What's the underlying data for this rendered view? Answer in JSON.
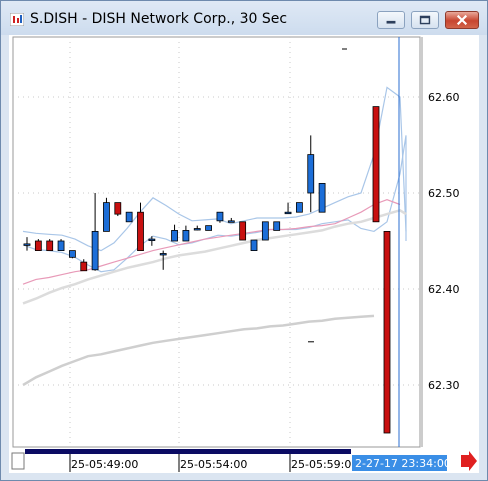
{
  "window": {
    "title": "S.DISH - DISH Network Corp., 30 Sec",
    "controls": [
      "minimize-icon",
      "restore-icon",
      "close-icon"
    ]
  },
  "chart_data": {
    "type": "candlestick",
    "title": "S.DISH - DISH Network Corp., 30 Sec",
    "y_axis": {
      "ticks": [
        "62.30",
        "62.40",
        "62.50",
        "62.60"
      ],
      "tick_values": [
        62.3,
        62.4,
        62.5,
        62.6
      ],
      "range": [
        62.24,
        62.665
      ],
      "side": "right",
      "grid": true
    },
    "x_axis": {
      "ticks": [
        "25-05:49:00",
        "25-05:54:00",
        "25-05:59:00"
      ],
      "cursor_label": "2-27-17 23:34:00",
      "grid": true
    },
    "candles": [
      {
        "o": 62.447,
        "h": 62.454,
        "l": 62.44,
        "c": 62.447
      },
      {
        "o": 62.45,
        "h": 62.452,
        "l": 62.44,
        "c": 62.44
      },
      {
        "o": 62.45,
        "h": 62.452,
        "l": 62.44,
        "c": 62.44
      },
      {
        "o": 62.44,
        "h": 62.452,
        "l": 62.44,
        "c": 62.45
      },
      {
        "o": 62.433,
        "h": 62.44,
        "l": 62.432,
        "c": 62.44
      },
      {
        "o": 62.428,
        "h": 62.431,
        "l": 62.419,
        "c": 62.419
      },
      {
        "o": 62.42,
        "h": 62.5,
        "l": 62.419,
        "c": 62.46
      },
      {
        "o": 62.46,
        "h": 62.495,
        "l": 62.46,
        "c": 62.49
      },
      {
        "o": 62.49,
        "h": 62.49,
        "l": 62.476,
        "c": 62.478
      },
      {
        "o": 62.47,
        "h": 62.48,
        "l": 62.47,
        "c": 62.48
      },
      {
        "o": 62.48,
        "h": 62.49,
        "l": 62.44,
        "c": 62.44
      },
      {
        "o": 62.452,
        "h": 62.455,
        "l": 62.445,
        "c": 62.452
      },
      {
        "o": 62.437,
        "h": 62.44,
        "l": 62.42,
        "c": 62.437
      },
      {
        "o": 62.45,
        "h": 62.467,
        "l": 62.45,
        "c": 62.461
      },
      {
        "o": 62.45,
        "h": 62.466,
        "l": 62.45,
        "c": 62.461
      },
      {
        "o": 62.463,
        "h": 62.466,
        "l": 62.461,
        "c": 62.463
      },
      {
        "o": 62.461,
        "h": 62.466,
        "l": 62.461,
        "c": 62.466
      },
      {
        "o": 62.471,
        "h": 62.48,
        "l": 62.469,
        "c": 62.48
      },
      {
        "o": 62.471,
        "h": 62.474,
        "l": 62.471,
        "c": 62.471
      },
      {
        "o": 62.47,
        "h": 62.47,
        "l": 62.451,
        "c": 62.451
      },
      {
        "o": 62.44,
        "h": 62.451,
        "l": 62.44,
        "c": 62.451
      },
      {
        "o": 62.451,
        "h": 62.47,
        "l": 62.451,
        "c": 62.47
      },
      {
        "o": 62.461,
        "h": 62.47,
        "l": 62.461,
        "c": 62.47
      },
      {
        "o": 62.48,
        "h": 62.49,
        "l": 62.479,
        "c": 62.48
      },
      {
        "o": 62.48,
        "h": 62.49,
        "l": 62.48,
        "c": 62.49
      },
      {
        "o": 62.5,
        "h": 62.56,
        "l": 62.48,
        "c": 62.54
      },
      {
        "o": 62.48,
        "h": 62.51,
        "l": 62.48,
        "c": 62.51
      },
      {
        "o": 62.59,
        "h": 62.59,
        "l": 62.47,
        "c": 62.47
      },
      {
        "o": 62.46,
        "h": 62.46,
        "l": 62.25,
        "c": 62.25
      }
    ],
    "moving_averages": [
      {
        "color": "#a9c6e8",
        "values": [
          62.46,
          62.458,
          62.457,
          62.456,
          62.452,
          62.445,
          62.44,
          62.448,
          62.463,
          62.48,
          62.495,
          62.487,
          62.478,
          62.471,
          62.472,
          62.473,
          62.468,
          62.471,
          62.474,
          62.474,
          62.474,
          62.475,
          62.478,
          62.484,
          62.49,
          62.496,
          62.5,
          62.54,
          62.61,
          62.6,
          62.46
        ]
      },
      {
        "color": "#a9c6e8",
        "values": [
          62.446,
          62.441,
          62.44,
          62.438,
          62.433,
          62.425,
          62.418,
          62.42,
          62.432,
          62.445,
          62.455,
          62.452,
          62.446,
          62.448,
          62.452,
          62.456,
          62.455,
          62.457,
          62.459,
          62.462,
          62.462,
          62.462,
          62.464,
          62.468,
          62.47,
          62.472,
          62.463,
          62.46,
          62.47,
          62.52,
          62.56,
          62.45
        ]
      },
      {
        "color": "#e89ab8",
        "values": [
          62.405,
          62.41,
          62.412,
          62.415,
          62.418,
          62.42,
          62.424,
          62.428,
          62.432,
          62.436,
          62.44,
          62.443,
          62.446,
          62.449,
          62.452,
          62.454,
          62.456,
          62.458,
          62.46,
          62.462,
          62.462,
          62.463,
          62.465,
          62.466,
          62.468,
          62.474,
          62.48,
          62.488,
          62.493,
          62.488
        ]
      },
      {
        "color": "#dcdcdc",
        "values": [
          62.385,
          62.39,
          62.396,
          62.401,
          62.405,
          62.41,
          62.414,
          62.418,
          62.422,
          62.425,
          62.428,
          62.432,
          62.435,
          62.437,
          62.439,
          62.442,
          62.445,
          62.448,
          62.451,
          62.453,
          62.455,
          62.457,
          62.459,
          62.461,
          62.465,
          62.468,
          62.47,
          62.474,
          62.478,
          62.482,
          62.478
        ]
      },
      {
        "color": "#cfcfcf",
        "values": [
          62.3,
          62.308,
          62.314,
          62.32,
          62.325,
          62.33,
          62.332,
          62.335,
          62.338,
          62.341,
          62.344,
          62.346,
          62.348,
          62.35,
          62.352,
          62.354,
          62.356,
          62.358,
          62.359,
          62.361,
          62.362,
          62.364,
          62.366,
          62.367,
          62.369,
          62.37,
          62.371,
          62.372
        ]
      }
    ],
    "markers": [
      {
        "label": "-",
        "value": 62.65
      },
      {
        "label": "-",
        "value": 62.345
      }
    ],
    "colors": {
      "up_body": "#1c6ed8",
      "down_body": "#c81010",
      "grid": "#c8c8c8",
      "cursor_line": "#2a6ed2",
      "cursor_label_bg": "#3a8ee6",
      "scroll_track": "#0b0b63",
      "scroll_arrow": "#e02020"
    }
  }
}
